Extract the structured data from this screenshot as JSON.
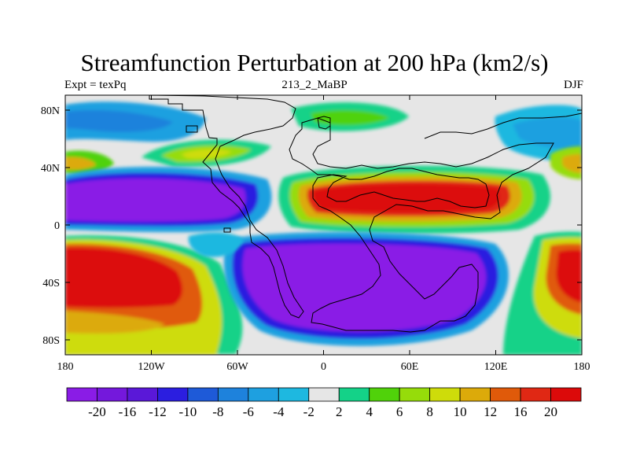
{
  "title": "Streamfunction Perturbation at 200 hPa (km2/s)",
  "subtitle_left": "Expt = texPq",
  "subtitle_center": "213_2_MaBP",
  "subtitle_right": "DJF",
  "axes": {
    "x_ticks": [
      "180",
      "120W",
      "60W",
      "0",
      "60E",
      "120E",
      "180"
    ],
    "y_ticks": [
      "80N",
      "40N",
      "0",
      "40S",
      "80S"
    ]
  },
  "colorbar": {
    "colors": [
      "#8a1ce6",
      "#7418dc",
      "#5a18d8",
      "#2b1ee0",
      "#1e5ad8",
      "#1e82dc",
      "#1ea0e0",
      "#1eb8e0",
      "#e6e6e6",
      "#14d288",
      "#50d20a",
      "#96dc0a",
      "#cedc0a",
      "#dcaa0a",
      "#e05a0a",
      "#e02814",
      "#dc0a0a"
    ],
    "labels": [
      "-20",
      "-16",
      "-12",
      "-10",
      "-8",
      "-6",
      "-4",
      "-2",
      "2",
      "4",
      "6",
      "8",
      "10",
      "12",
      "16",
      "20"
    ]
  }
}
